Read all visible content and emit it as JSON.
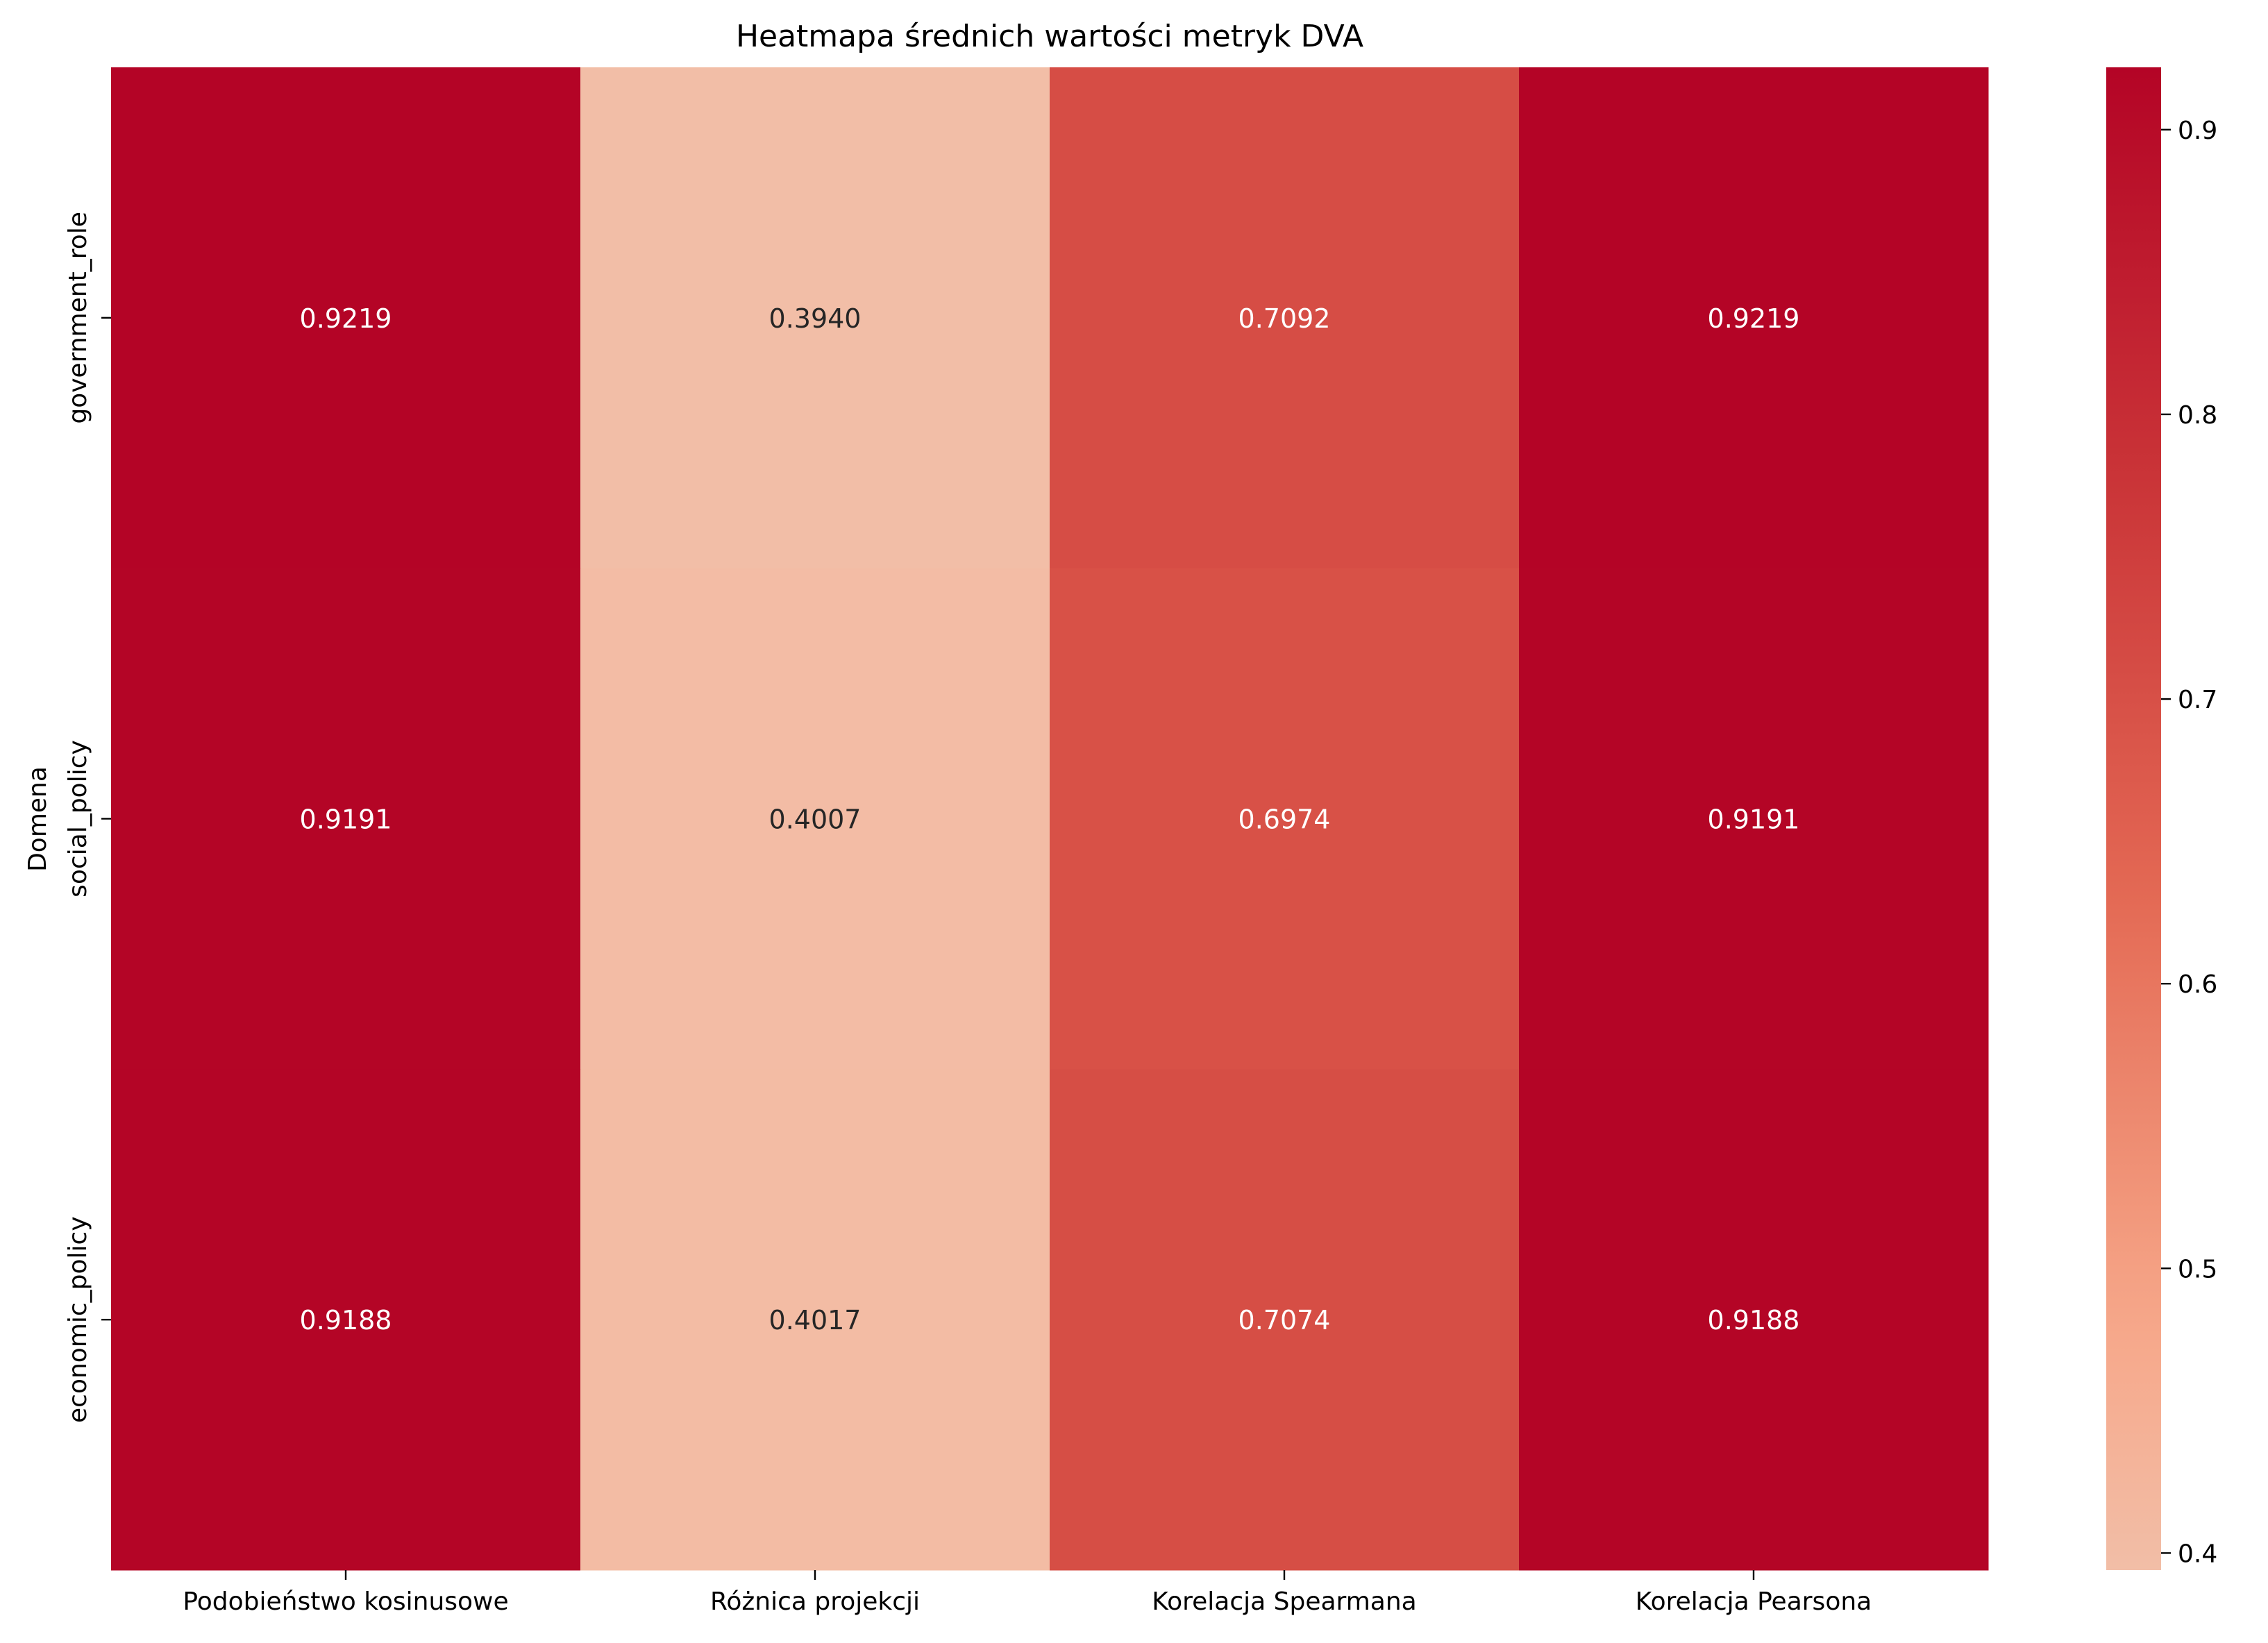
{
  "chart_data": {
    "type": "heatmap",
    "title": "Heatmapa średnich wartości metryk DVA",
    "xlabel": "",
    "ylabel": "Domena",
    "columns": [
      "Podobieństwo kosinusowe",
      "Różnica projekcji",
      "Korelacja Spearmana",
      "Korelacja Pearsona"
    ],
    "rows": [
      "government_role",
      "social_policy",
      "economic_policy"
    ],
    "values": [
      [
        0.9219,
        0.394,
        0.7092,
        0.9219
      ],
      [
        0.9191,
        0.4007,
        0.6974,
        0.9191
      ],
      [
        0.9188,
        0.4017,
        0.7074,
        0.9188
      ]
    ],
    "value_format": "4 decimals",
    "colormap": "coolwarm",
    "vmin": 0.394,
    "vmax": 0.9219,
    "colorbar": {
      "ticks": [
        0.4,
        0.5,
        0.6,
        0.7,
        0.8,
        0.9
      ],
      "tick_labels": [
        "0.4",
        "0.5",
        "0.6",
        "0.7",
        "0.8",
        "0.9"
      ],
      "placement": "right"
    },
    "grid": false
  }
}
